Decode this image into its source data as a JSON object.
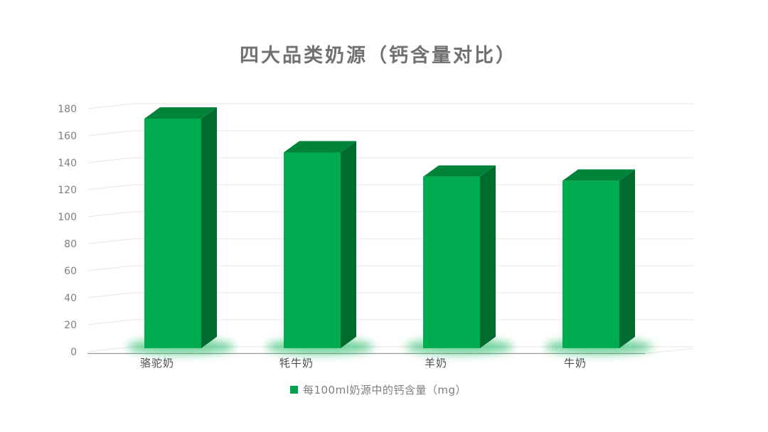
{
  "title": "四大品类奶源（钙含量对比）",
  "legend": {
    "label": "每100ml奶源中的钙含量（mg）",
    "marker_color": "#00A44C"
  },
  "chart_data": {
    "type": "bar",
    "variant": "3d-column",
    "title": "四大品类奶源（钙含量对比）",
    "categories": [
      "骆驼奶",
      "牦牛奶",
      "羊奶",
      "牛奶"
    ],
    "series": [
      {
        "name": "每100ml奶源中的钙含量（mg）",
        "values": [
          170,
          145,
          127,
          124
        ]
      }
    ],
    "xlabel": "",
    "ylabel": "",
    "ylim": [
      0,
      180
    ],
    "ytick_step": 20,
    "yticks": [
      0,
      20,
      40,
      60,
      80,
      100,
      120,
      140,
      160,
      180
    ],
    "grid": true,
    "legend_position": "bottom",
    "colors": {
      "bar_front": "#00AC50",
      "bar_top": "#00843A",
      "bar_side": "#006B2E",
      "glow": "#00B050",
      "gridline": "#e6e6e9",
      "axis_line": "#9b9b9b",
      "tick_text": "#7f7f7f",
      "category_text": "#4d4d4d",
      "title_text": "#717171"
    }
  }
}
